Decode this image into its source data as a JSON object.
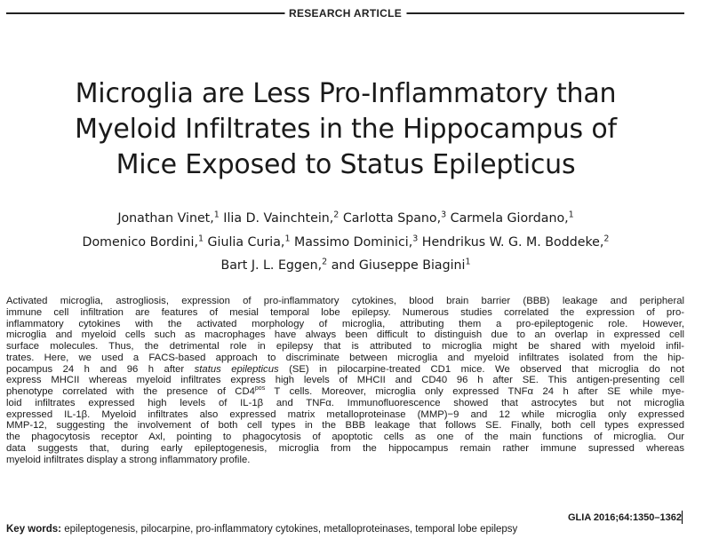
{
  "header": {
    "section_label": "RESEARCH ARTICLE"
  },
  "title_lines": [
    "Microglia are Less Pro-Inflammatory than",
    "Myeloid Infiltrates in the Hippocampus of",
    "Mice Exposed to Status Epilepticus"
  ],
  "authors": {
    "line1": [
      {
        "name": "Jonathan Vinet,",
        "aff": "1"
      },
      {
        "name": " Ilia D. Vainchtein,",
        "aff": "2"
      },
      {
        "name": " Carlotta Spano,",
        "aff": "3"
      },
      {
        "name": " Carmela Giordano,",
        "aff": "1"
      }
    ],
    "line2": [
      {
        "name": "Domenico Bordini,",
        "aff": "1"
      },
      {
        "name": " Giulia Curia,",
        "aff": "1"
      },
      {
        "name": " Massimo Dominici,",
        "aff": "3"
      },
      {
        "name": " Hendrikus W. G. M. Boddeke,",
        "aff": "2"
      }
    ],
    "line3": [
      {
        "name": "Bart J. L. Eggen,",
        "aff": "2"
      },
      {
        "name": " and Giuseppe Biagini",
        "aff": "1"
      }
    ]
  },
  "abstract_lines": {
    "l1": "Activated microglia, astrogliosis, expression of pro-inflammatory cytokines, blood brain barrier (BBB) leakage and peripheral",
    "l2": "immune cell infiltration are features of mesial temporal lobe epilepsy. Numerous studies correlated the expression of pro-",
    "l3": "inflammatory cytokines with the activated morphology of microglia, attributing them a pro-epileptogenic role. However,",
    "l4": "microglia and myeloid cells such as macrophages have always been difficult to distinguish due to an overlap in expressed cell",
    "l5": "surface molecules. Thus, the detrimental role in epilepsy that is attributed to microglia might be shared with myeloid infil-",
    "l6": "trates. Here, we used a FACS-based approach to discriminate between microglia and myeloid infiltrates isolated from the hip-",
    "l7a": "pocampus 24 h and 96 h after ",
    "l7b": "status epilepticus",
    "l7c": " (SE) in pilocarpine-treated CD1 mice. We observed that microglia do not",
    "l8": "express MHCII whereas myeloid infiltrates express high levels of MHCII and CD40 96 h after SE. This antigen-presenting cell",
    "l9a": "phenotype correlated with the presence of CD4",
    "l9sup": "pos",
    "l9b": " T cells. Moreover, microglia only expressed TNFα 24 h after SE while mye-",
    "l10": "loid infiltrates expressed high levels of IL-1β and TNFα. Immunofluorescence showed that astrocytes but not microglia",
    "l11": "expressed IL-1β. Myeloid infiltrates also expressed matrix metalloproteinase (MMP)−9 and 12 while microglia only expressed",
    "l12": "MMP-12, suggesting the involvement of both cell types in the BBB leakage that follows SE. Finally, both cell types expressed",
    "l13": "the phagocytosis receptor Axl, pointing to phagocytosis of apoptotic cells as one of the main functions of microglia. Our",
    "l14": "data suggests that, during early epileptogenesis, microglia from the hippocampus remain rather immune supressed whereas",
    "l15": "myeloid infiltrates display a strong inflammatory profile."
  },
  "citation": "GLIA 2016;64:1350–1362",
  "keywords": {
    "label": "Key words:",
    "text": " epileptogenesis, pilocarpine, pro-inflammatory cytokines, metalloproteinases, temporal lobe epilepsy"
  }
}
